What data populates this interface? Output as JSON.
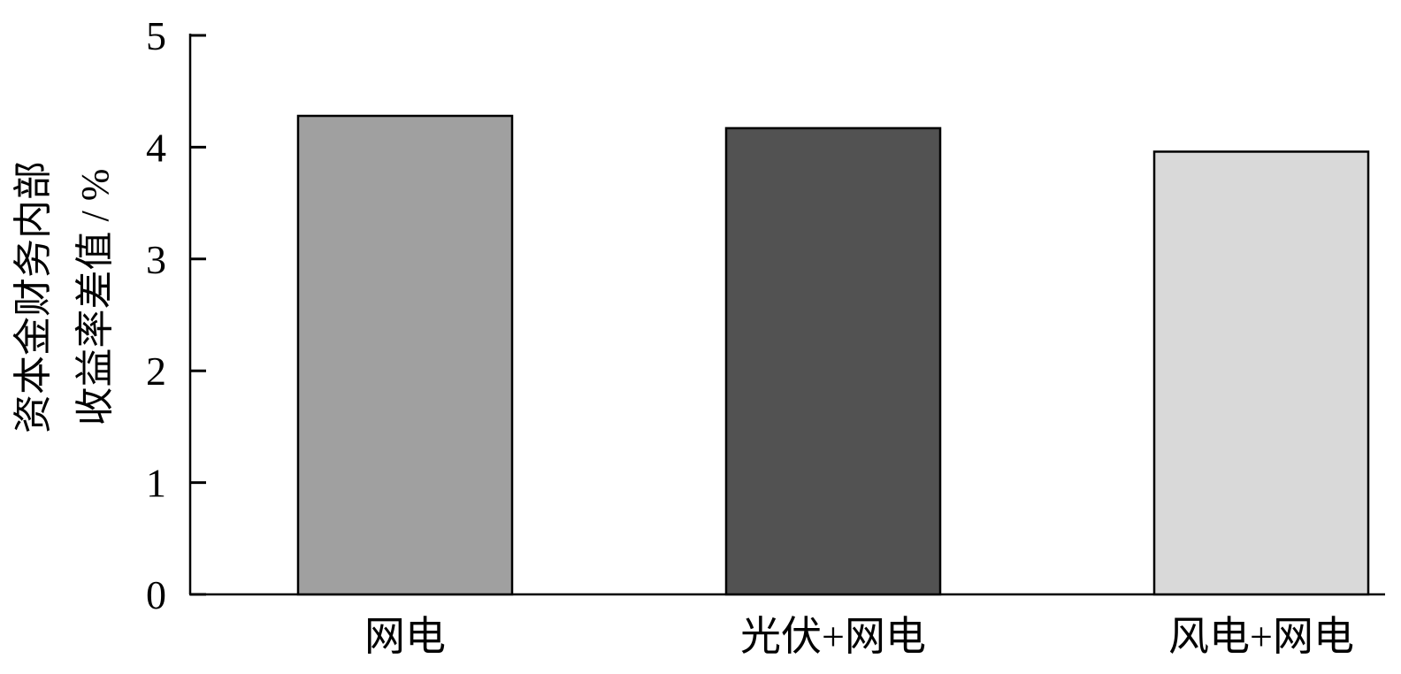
{
  "chart_data": {
    "type": "bar",
    "title": "",
    "xlabel": "",
    "ylabel_lines": [
      "资本金财务内部",
      "收益率差值 / %"
    ],
    "categories": [
      "网电",
      "光伏+网电",
      "风电+网电"
    ],
    "values": [
      4.28,
      4.17,
      3.96
    ],
    "colors": [
      "#a0a0a0",
      "#525252",
      "#d9d9d9"
    ],
    "ylim": [
      0,
      5
    ],
    "yticks": [
      0,
      1,
      2,
      3,
      4,
      5
    ],
    "grid": false,
    "legend": "none"
  }
}
